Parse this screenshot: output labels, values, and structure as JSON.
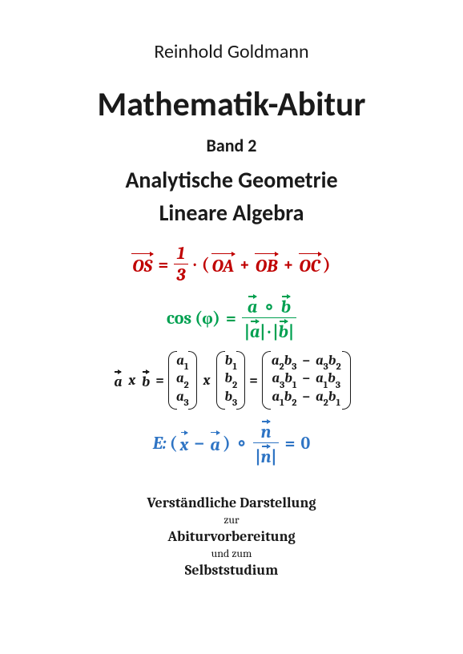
{
  "author": "Reinhold Goldmann",
  "title": "Mathematik-Abitur",
  "band": "Band 2",
  "subtitle1": "Analytische Geometrie",
  "subtitle2": "Lineare Algebra",
  "formulas": {
    "centroid": {
      "color": "#c00000",
      "lhs_vec": "OS",
      "frac_num": "1",
      "frac_den": "3",
      "dot": "·",
      "paren_open": "(",
      "terms": [
        "OA",
        "OB",
        "OC"
      ],
      "plus": "+",
      "paren_close": ")"
    },
    "cosine": {
      "color": "#00a050",
      "func": "cos",
      "arg": "(φ)",
      "eq": "=",
      "num_a": "a⃗",
      "circ": "∘",
      "num_b": "b⃗",
      "den_a": "|a⃗|",
      "den_dot": "·",
      "den_b": "|b⃗|"
    },
    "cross": {
      "color": "#1a1a1a",
      "a": "a⃗",
      "x": "x",
      "b": "b⃗",
      "eq": "=",
      "col_a": [
        "a",
        "a",
        "a"
      ],
      "col_a_sub": [
        "1",
        "2",
        "3"
      ],
      "col_b": [
        "b",
        "b",
        "b"
      ],
      "col_b_sub": [
        "1",
        "2",
        "3"
      ],
      "result": [
        {
          "t1a": "a",
          "t1as": "2",
          "t1b": "b",
          "t1bs": "3",
          "minus": "−",
          "t2a": "a",
          "t2as": "3",
          "t2b": "b",
          "t2bs": "2"
        },
        {
          "t1a": "a",
          "t1as": "3",
          "t1b": "b",
          "t1bs": "1",
          "minus": "−",
          "t2a": "a",
          "t2as": "1",
          "t2b": "b",
          "t2bs": "3"
        },
        {
          "t1a": "a",
          "t1as": "1",
          "t1b": "b",
          "t1bs": "2",
          "minus": "−",
          "t2a": "a",
          "t2as": "2",
          "t2b": "b",
          "t2bs": "1"
        }
      ]
    },
    "plane": {
      "color": "#2e74c4",
      "E": "E:",
      "paren_open": "(",
      "x": "x⃗",
      "minus": "−",
      "a": "a⃗",
      "paren_close": ")",
      "circ": "∘",
      "num_n": "n⃗",
      "den_n": "|n⃗|",
      "eq": "=",
      "zero": "0"
    }
  },
  "bottom": {
    "line1": "Verständliche Darstellung",
    "line2": "zur",
    "line3": "Abiturvorbereitung",
    "line4": "und zum",
    "line5": "Selbststudium"
  }
}
